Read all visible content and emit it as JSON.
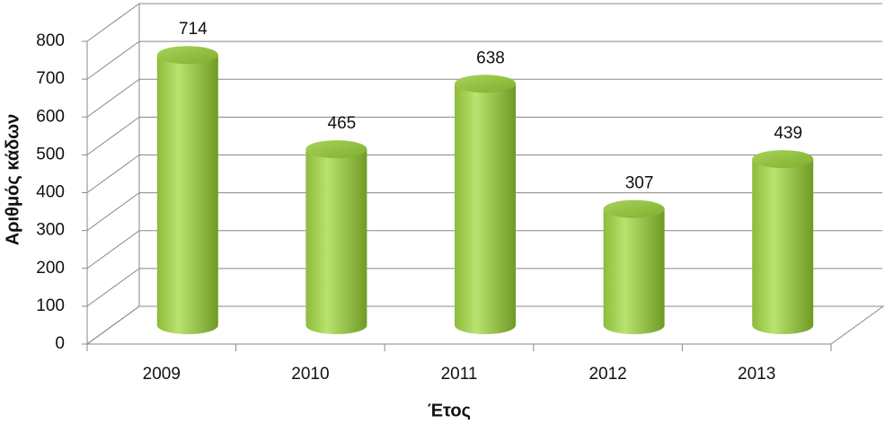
{
  "chart_data": {
    "type": "bar3d-cylinder",
    "x_label": "Έτος",
    "y_label": "Αριθμός κάδων",
    "categories": [
      "2009",
      "2010",
      "2011",
      "2012",
      "2013"
    ],
    "values": [
      714,
      465,
      638,
      307,
      439
    ],
    "color": "#9acd45",
    "ylim": [
      0,
      800
    ],
    "yticks": [
      0,
      100,
      200,
      300,
      400,
      500,
      600,
      700,
      800
    ],
    "grid": true
  }
}
